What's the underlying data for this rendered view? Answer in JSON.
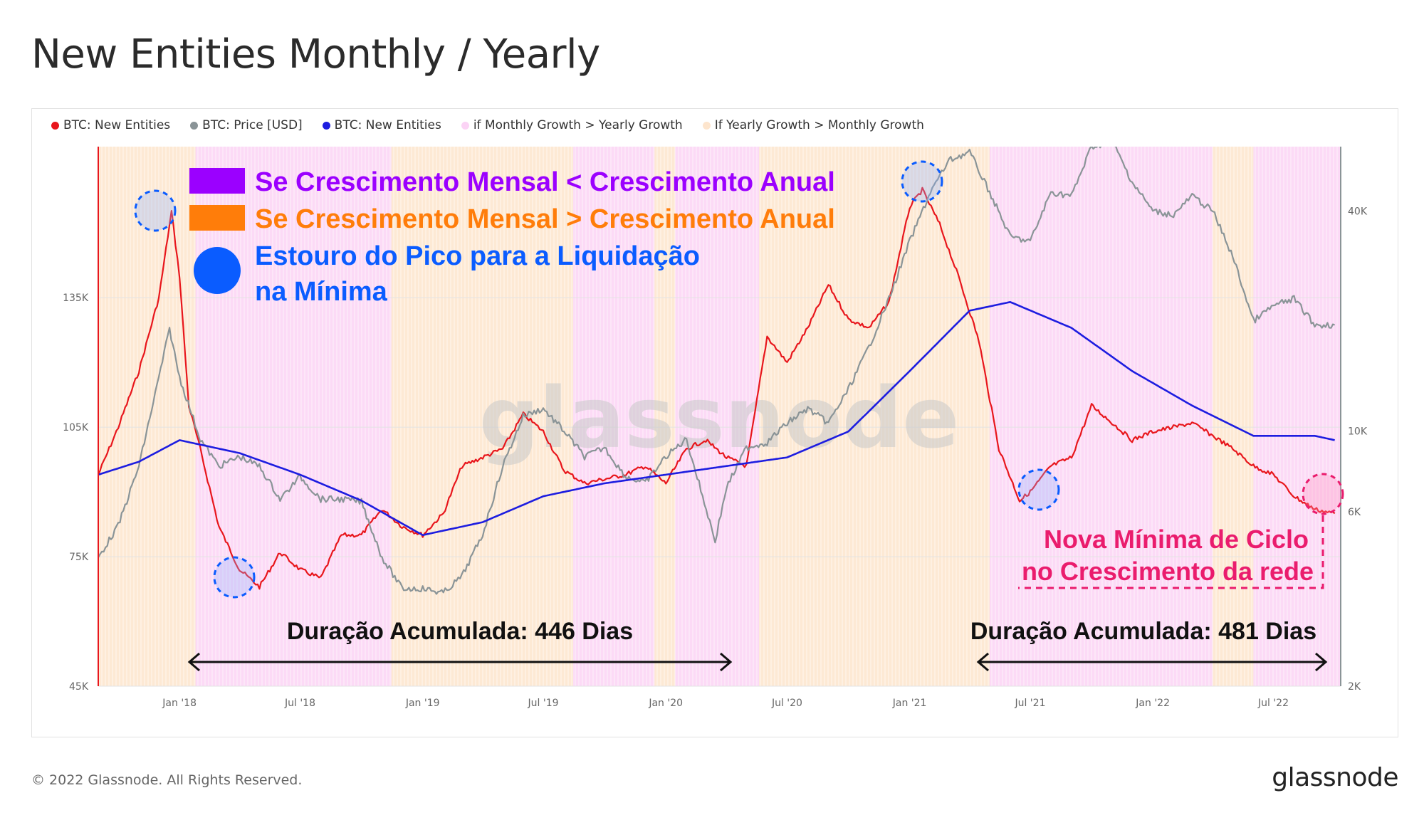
{
  "page": {
    "title": "New Entities Monthly / Yearly",
    "footer": "© 2022 Glassnode. All Rights Reserved.",
    "logo": "glassnode",
    "watermark": "glassnode"
  },
  "legend": [
    {
      "label": "BTC: New Entities",
      "color": "#e8161c"
    },
    {
      "label": "BTC: Price [USD]",
      "color": "#8a9497"
    },
    {
      "label": "BTC: New Entities",
      "color": "#1d1de0"
    },
    {
      "label": "if Monthly Growth > Yearly Growth",
      "color": "#fbd3f5"
    },
    {
      "label": "If Yearly Growth > Monthly Growth",
      "color": "#fde5cd"
    }
  ],
  "annotations": {
    "key_monthly_lt": {
      "label": "Se Crescimento Mensal < Crescimento Anual",
      "color": "#9b00ff"
    },
    "key_monthly_gt": {
      "label": "Se Crescimento Mensal > Crescimento Anual",
      "color": "#ff7d0a"
    },
    "key_peak": {
      "label_line1": "Estouro do Pico para a Liquidação",
      "label_line2": "na Mínima",
      "color": "#0a5cff"
    },
    "new_low_line1": "Nova Mínima de Ciclo",
    "new_low_line2": "no Crescimento da rede",
    "new_low_color": "#ea1c6d",
    "duration_1": "Duração Acumulada: 446 Dias",
    "duration_2": "Duração Acumulada: 481 Dias"
  },
  "chart_data": {
    "type": "line",
    "x_range": [
      "2017-09-01",
      "2022-10-10"
    ],
    "x_ticks": [
      "Jan '18",
      "Jul '18",
      "Jan '19",
      "Jul '19",
      "Jan '20",
      "Jul '20",
      "Jan '21",
      "Jul '21",
      "Jan '22",
      "Jul '22"
    ],
    "y_left": {
      "ticks": [
        "45K",
        "75K",
        "105K",
        "135K"
      ],
      "range": [
        45000,
        170000
      ]
    },
    "y_right": {
      "ticks": [
        "2K",
        "6K",
        "10K",
        "40K"
      ],
      "scale": "log",
      "range": [
        2000,
        60000
      ]
    },
    "series": [
      {
        "name": "BTC: New Entities",
        "axis": "left",
        "color": "#e8161c",
        "points": [
          [
            "2017-09-01",
            94000
          ],
          [
            "2017-10-01",
            105000
          ],
          [
            "2017-11-01",
            118000
          ],
          [
            "2017-12-01",
            135000
          ],
          [
            "2017-12-20",
            155000
          ],
          [
            "2018-01-01",
            140000
          ],
          [
            "2018-01-15",
            110000
          ],
          [
            "2018-02-01",
            100000
          ],
          [
            "2018-03-01",
            82000
          ],
          [
            "2018-04-01",
            72000
          ],
          [
            "2018-05-01",
            68000
          ],
          [
            "2018-06-01",
            76000
          ],
          [
            "2018-07-01",
            72000
          ],
          [
            "2018-08-01",
            70000
          ],
          [
            "2018-09-01",
            80000
          ],
          [
            "2018-10-01",
            80000
          ],
          [
            "2018-11-01",
            86000
          ],
          [
            "2018-12-01",
            82000
          ],
          [
            "2019-01-01",
            80000
          ],
          [
            "2019-02-01",
            85000
          ],
          [
            "2019-03-01",
            96000
          ],
          [
            "2019-04-01",
            98000
          ],
          [
            "2019-05-01",
            100000
          ],
          [
            "2019-06-01",
            108000
          ],
          [
            "2019-07-01",
            104000
          ],
          [
            "2019-08-01",
            95000
          ],
          [
            "2019-09-01",
            92000
          ],
          [
            "2019-10-01",
            93000
          ],
          [
            "2019-11-01",
            94000
          ],
          [
            "2019-12-01",
            96000
          ],
          [
            "2020-01-01",
            92000
          ],
          [
            "2020-02-01",
            100000
          ],
          [
            "2020-03-01",
            102000
          ],
          [
            "2020-04-01",
            98000
          ],
          [
            "2020-05-01",
            96000
          ],
          [
            "2020-06-01",
            126000
          ],
          [
            "2020-07-01",
            120000
          ],
          [
            "2020-08-01",
            128000
          ],
          [
            "2020-09-01",
            138000
          ],
          [
            "2020-10-01",
            130000
          ],
          [
            "2020-11-01",
            128000
          ],
          [
            "2020-12-01",
            134000
          ],
          [
            "2021-01-01",
            156000
          ],
          [
            "2021-01-20",
            160000
          ],
          [
            "2021-02-15",
            152000
          ],
          [
            "2021-03-15",
            140000
          ],
          [
            "2021-04-15",
            125000
          ],
          [
            "2021-05-15",
            100000
          ],
          [
            "2021-06-15",
            88000
          ],
          [
            "2021-07-01",
            90000
          ],
          [
            "2021-08-01",
            96000
          ],
          [
            "2021-09-01",
            98000
          ],
          [
            "2021-10-01",
            110000
          ],
          [
            "2021-11-01",
            106000
          ],
          [
            "2021-12-01",
            102000
          ],
          [
            "2022-01-01",
            104000
          ],
          [
            "2022-02-01",
            105000
          ],
          [
            "2022-03-01",
            106000
          ],
          [
            "2022-04-01",
            103000
          ],
          [
            "2022-05-01",
            100000
          ],
          [
            "2022-06-01",
            96000
          ],
          [
            "2022-07-01",
            94000
          ],
          [
            "2022-08-01",
            89000
          ],
          [
            "2022-09-01",
            86000
          ],
          [
            "2022-10-01",
            85000
          ]
        ]
      },
      {
        "name": "BTC: Price [USD]",
        "axis": "right",
        "color": "#8a9497",
        "points": [
          [
            "2017-09-01",
            4500
          ],
          [
            "2017-10-01",
            5500
          ],
          [
            "2017-11-01",
            8000
          ],
          [
            "2017-12-01",
            14000
          ],
          [
            "2017-12-17",
            19000
          ],
          [
            "2018-01-01",
            14000
          ],
          [
            "2018-02-01",
            9500
          ],
          [
            "2018-03-01",
            8000
          ],
          [
            "2018-04-01",
            8500
          ],
          [
            "2018-05-01",
            8000
          ],
          [
            "2018-06-01",
            6500
          ],
          [
            "2018-07-01",
            7500
          ],
          [
            "2018-08-01",
            6500
          ],
          [
            "2018-09-01",
            6500
          ],
          [
            "2018-10-01",
            6400
          ],
          [
            "2018-11-01",
            4500
          ],
          [
            "2018-12-01",
            3700
          ],
          [
            "2019-01-01",
            3700
          ],
          [
            "2019-02-01",
            3600
          ],
          [
            "2019-03-01",
            4000
          ],
          [
            "2019-04-01",
            5200
          ],
          [
            "2019-05-01",
            8000
          ],
          [
            "2019-06-01",
            11000
          ],
          [
            "2019-07-01",
            11500
          ],
          [
            "2019-08-01",
            10000
          ],
          [
            "2019-09-01",
            8500
          ],
          [
            "2019-10-01",
            9000
          ],
          [
            "2019-11-01",
            7500
          ],
          [
            "2019-12-01",
            7200
          ],
          [
            "2020-01-01",
            8500
          ],
          [
            "2020-02-01",
            9500
          ],
          [
            "2020-03-15",
            5000
          ],
          [
            "2020-04-01",
            7000
          ],
          [
            "2020-05-01",
            9000
          ],
          [
            "2020-06-01",
            9300
          ],
          [
            "2020-07-01",
            10500
          ],
          [
            "2020-08-01",
            11500
          ],
          [
            "2020-09-01",
            10500
          ],
          [
            "2020-10-01",
            13000
          ],
          [
            "2020-11-01",
            17000
          ],
          [
            "2020-12-01",
            23000
          ],
          [
            "2021-01-01",
            33000
          ],
          [
            "2021-02-01",
            45000
          ],
          [
            "2021-03-01",
            55000
          ],
          [
            "2021-04-01",
            58000
          ],
          [
            "2021-05-01",
            45000
          ],
          [
            "2021-06-01",
            34000
          ],
          [
            "2021-07-01",
            33000
          ],
          [
            "2021-08-01",
            45000
          ],
          [
            "2021-09-01",
            44000
          ],
          [
            "2021-10-01",
            60000
          ],
          [
            "2021-11-01",
            62000
          ],
          [
            "2021-12-01",
            48000
          ],
          [
            "2022-01-01",
            40000
          ],
          [
            "2022-02-01",
            39000
          ],
          [
            "2022-03-01",
            44000
          ],
          [
            "2022-04-01",
            40000
          ],
          [
            "2022-05-01",
            30000
          ],
          [
            "2022-06-01",
            20000
          ],
          [
            "2022-07-01",
            22000
          ],
          [
            "2022-08-01",
            23000
          ],
          [
            "2022-09-01",
            19500
          ],
          [
            "2022-10-01",
            19500
          ]
        ]
      },
      {
        "name": "BTC: New Entities",
        "axis": "left",
        "color": "#1d1de0",
        "points": [
          [
            "2017-09-01",
            94000
          ],
          [
            "2017-11-01",
            97000
          ],
          [
            "2018-01-01",
            102000
          ],
          [
            "2018-04-01",
            99000
          ],
          [
            "2018-07-01",
            94000
          ],
          [
            "2018-10-01",
            88000
          ],
          [
            "2019-01-01",
            80000
          ],
          [
            "2019-04-01",
            83000
          ],
          [
            "2019-07-01",
            89000
          ],
          [
            "2019-10-01",
            92000
          ],
          [
            "2020-01-01",
            94000
          ],
          [
            "2020-04-01",
            96000
          ],
          [
            "2020-07-01",
            98000
          ],
          [
            "2020-10-01",
            104000
          ],
          [
            "2021-01-01",
            118000
          ],
          [
            "2021-04-01",
            132000
          ],
          [
            "2021-06-01",
            134000
          ],
          [
            "2021-09-01",
            128000
          ],
          [
            "2021-12-01",
            118000
          ],
          [
            "2022-03-01",
            110000
          ],
          [
            "2022-06-01",
            103000
          ],
          [
            "2022-09-01",
            103000
          ],
          [
            "2022-10-01",
            102000
          ]
        ]
      }
    ],
    "regions": [
      {
        "type": "yearly_gt_monthly",
        "from": "2017-09-01",
        "to": "2018-01-25"
      },
      {
        "type": "monthly_gt_yearly",
        "from": "2018-01-25",
        "to": "2018-11-15"
      },
      {
        "type": "yearly_gt_monthly",
        "from": "2018-11-15",
        "to": "2019-08-15"
      },
      {
        "type": "monthly_gt_yearly",
        "from": "2019-08-15",
        "to": "2019-12-15"
      },
      {
        "type": "yearly_gt_monthly",
        "from": "2019-12-15",
        "to": "2020-01-15"
      },
      {
        "type": "monthly_gt_yearly",
        "from": "2020-01-15",
        "to": "2020-05-20"
      },
      {
        "type": "yearly_gt_monthly",
        "from": "2020-05-20",
        "to": "2021-05-01"
      },
      {
        "type": "monthly_gt_yearly",
        "from": "2021-05-01",
        "to": "2022-04-01"
      },
      {
        "type": "yearly_gt_monthly",
        "from": "2022-04-01",
        "to": "2022-06-01"
      },
      {
        "type": "monthly_gt_yearly",
        "from": "2022-06-01",
        "to": "2022-10-10"
      }
    ]
  }
}
